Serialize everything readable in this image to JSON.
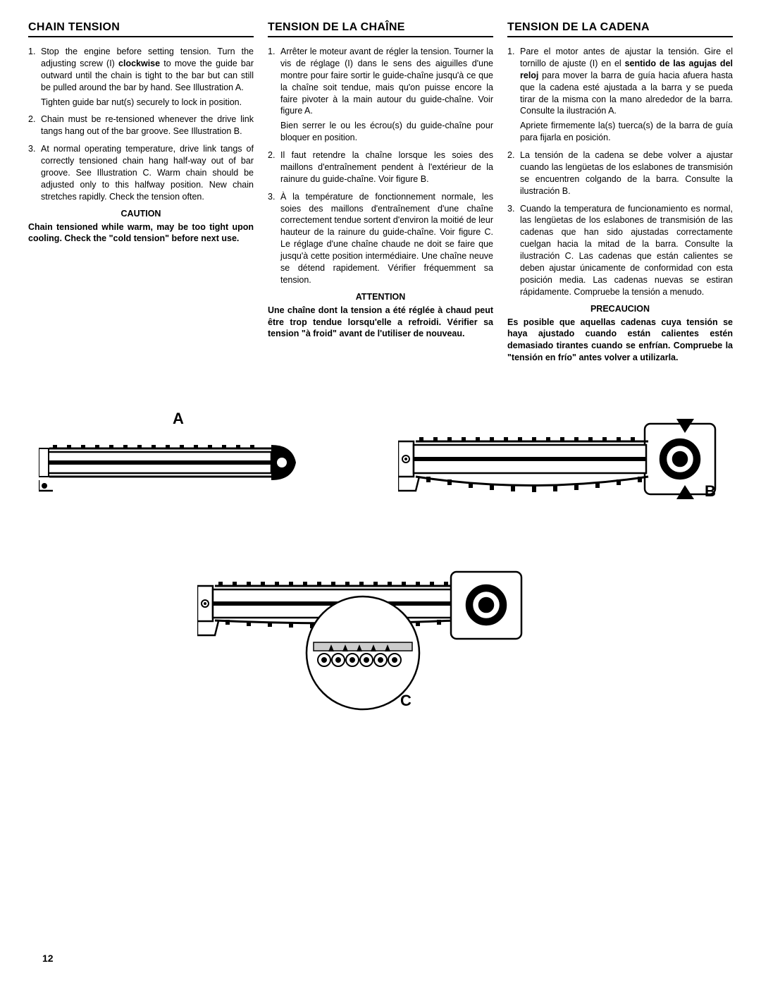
{
  "col1": {
    "heading": "CHAIN TENSION",
    "items": [
      {
        "num": "1.",
        "text": "Stop the engine before setting tension. Turn the adjusting screw (I) <b>clockwise</b> to move the guide bar outward until the chain is tight to the bar but can still be pulled around the bar by hand. See Illustration A.",
        "sub": "Tighten guide bar nut(s) securely to lock in position."
      },
      {
        "num": "2.",
        "text": "Chain must be re-tensioned whenever the drive link tangs hang out of the bar groove. See Illustration B."
      },
      {
        "num": "3.",
        "text": "At normal operating temperature, drive link tangs of correctly tensioned chain hang half-way out of bar groove. See Illustration C. Warm chain should be adjusted only to this halfway position. New chain stretches rapidly. Check the tension often."
      }
    ],
    "caution_label": "CAUTION",
    "caution_text": "Chain tensioned while warm, may be too tight upon cooling. Check the \"cold tension\" before next use."
  },
  "col2": {
    "heading": "TENSION DE LA CHAÎNE",
    "items": [
      {
        "num": "1.",
        "text": "Arrêter le moteur avant de régler la tension. Tourner la vis de réglage (I) dans le sens des aiguilles d'une montre pour faire sortir le guide-chaîne jusqu'à ce que la chaîne soit tendue, mais qu'on puisse encore la faire pivoter à la main autour du guide-chaîne. Voir figure A.",
        "sub": "Bien serrer le ou les écrou(s) du guide-chaîne pour bloquer en position."
      },
      {
        "num": "2.",
        "text": "Il faut retendre la chaîne lorsque les soies des maillons d'entraînement pendent à l'extérieur de la rainure du guide-chaîne. Voir figure B."
      },
      {
        "num": "3.",
        "text": "À la température de fonctionnement normale, les soies des maillons d'entraînement d'une chaîne correctement tendue sortent d'environ la moitié de leur hauteur de la rainure du guide-chaîne. Voir figure C. Le réglage d'une chaîne chaude ne doit se faire que jusqu'à cette position intermédiaire. Une chaîne neuve se détend rapidement. Vérifier fréquemment sa tension."
      }
    ],
    "caution_label": "ATTENTION",
    "caution_text": "Une chaîne dont la tension a été réglée à chaud peut être trop tendue lorsqu'elle a refroidi. Vérifier sa tension \"à froid\" avant de l'utiliser de nouveau."
  },
  "col3": {
    "heading": "TENSION DE LA CADENA",
    "items": [
      {
        "num": "1.",
        "text": "Pare el motor antes de ajustar la tensión. Gire el tornillo de ajuste (I) en el <b>sentido de las agujas del reloj</b> para mover la barra de guía hacia afuera hasta que la cadena esté ajustada a la barra y se pueda tirar de la misma con la mano alrededor de la barra. Consulte la ilustración A.",
        "sub": "Apriete firmemente la(s) tuerca(s) de la barra de guía para fijarla en posición."
      },
      {
        "num": "2.",
        "text": "La tensión de la cadena se debe volver a ajustar cuando las lengüetas de los eslabones de transmisión se encuentren colgando de la barra. Consulte la ilustración B."
      },
      {
        "num": "3.",
        "text": "Cuando la temperatura de funcionamiento es normal, las lengüetas de los eslabones de transmisión de las cadenas que han sido ajustadas correctamente cuelgan hacia la mitad de la barra. Consulte la ilustración C. Las cadenas que están calientes se deben ajustar únicamente de conformidad con esta posición media. Las cadenas nuevas se estiran rápidamente. Compruebe la tensión a menudo."
      }
    ],
    "caution_label": "PRECAUCION",
    "caution_text": "Es posible que aquellas cadenas cuya tensión se haya ajustado cuando están calientes estén demasiado tirantes cuando se enfrían. Compruebe la \"tensión en frío\" antes volver a utilizarla."
  },
  "labels": {
    "a": "A",
    "b": "B",
    "c": "C"
  },
  "page_number": "12"
}
